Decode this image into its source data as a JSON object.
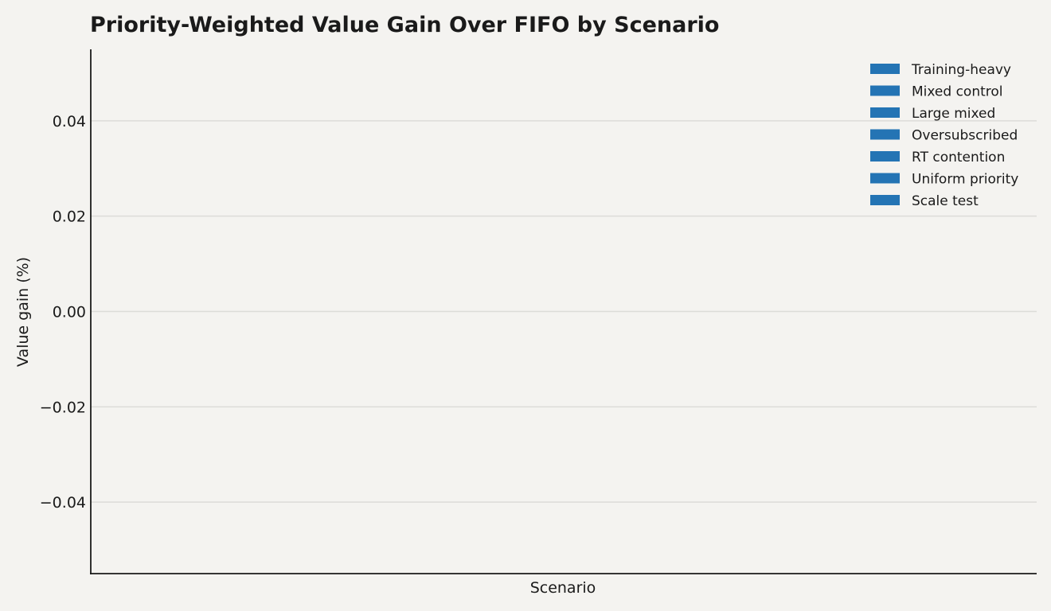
{
  "chart_data": {
    "type": "bar",
    "title": "Priority-Weighted Value Gain Over FIFO by Scenario",
    "xlabel": "Scenario",
    "ylabel": "Value gain (%)",
    "ylim": [
      -0.055,
      0.055
    ],
    "yticks": [
      {
        "value": 0.04,
        "label": "0.04"
      },
      {
        "value": 0.02,
        "label": "0.02"
      },
      {
        "value": 0.0,
        "label": "0.00"
      },
      {
        "value": -0.02,
        "label": "−0.02"
      },
      {
        "value": -0.04,
        "label": "−0.04"
      }
    ],
    "grid": true,
    "legend_position": "top-right",
    "series": [
      {
        "name": "Training-heavy",
        "values": [],
        "color": "#2474b4"
      },
      {
        "name": "Mixed control",
        "values": [],
        "color": "#2474b4"
      },
      {
        "name": "Large mixed",
        "values": [],
        "color": "#2474b4"
      },
      {
        "name": "Oversubscribed",
        "values": [],
        "color": "#2474b4"
      },
      {
        "name": "RT contention",
        "values": [],
        "color": "#2474b4"
      },
      {
        "name": "Uniform priority",
        "values": [],
        "color": "#2474b4"
      },
      {
        "name": "Scale test",
        "values": [],
        "color": "#2474b4"
      }
    ]
  }
}
